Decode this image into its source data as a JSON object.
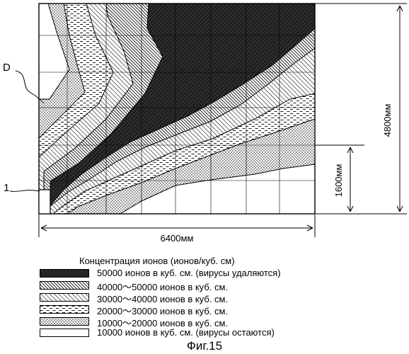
{
  "chart_data": {
    "type": "heatmap",
    "title": "",
    "annotations": {
      "region_label": "D",
      "device_label": "1",
      "width_dimension": "6400мм",
      "height_dimension": "4800мм",
      "device_height_dimension": "1600мм"
    },
    "legend": {
      "title": "Концентрация ионов (ионов/куб. см)",
      "items": [
        {
          "label": "50000 ионов в куб. см. (вирусы удаляются)",
          "pattern": "dense"
        },
        {
          "label": "40000～50000 ионов в куб. см.",
          "pattern": "diag-dense"
        },
        {
          "label": "30000～40000 ионов в куб. см.",
          "pattern": "diag-sparse"
        },
        {
          "label": "20000～30000 ионов в куб. см.",
          "pattern": "dashes"
        },
        {
          "label": "10000～20000 ионов в куб. см.",
          "pattern": "dots"
        },
        {
          "label": "10000 ионов в куб. см. (вирусы остаются)",
          "pattern": "blank"
        }
      ]
    },
    "caption": "Фиг.15"
  }
}
